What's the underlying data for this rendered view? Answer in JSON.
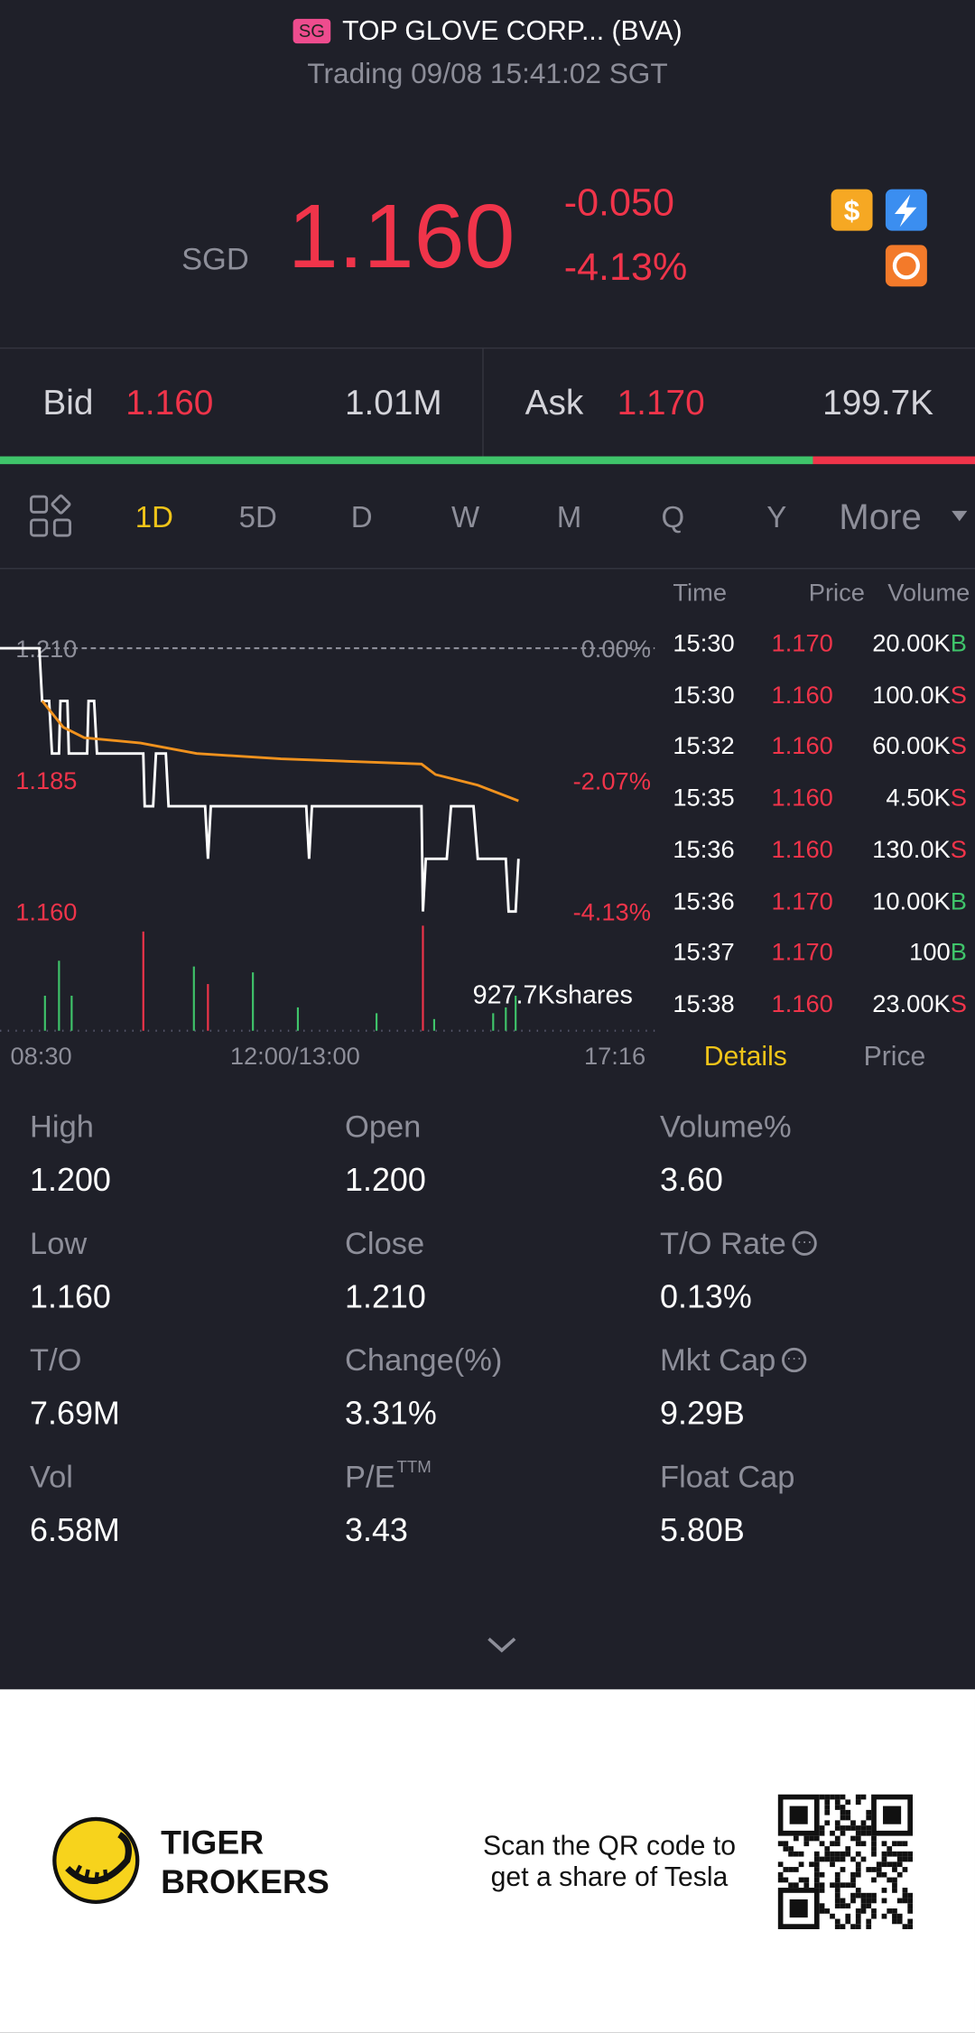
{
  "header": {
    "market_badge": "SG",
    "name": "TOP GLOVE CORP... (BVA)",
    "status": "Trading 09/08 15:41:02 SGT"
  },
  "quote": {
    "currency": "SGD",
    "price": "1.160",
    "change": "-0.050",
    "change_pct": "-4.13%"
  },
  "bid_ask": {
    "bid_label": "Bid",
    "bid_price": "1.160",
    "bid_size": "1.01M",
    "ask_label": "Ask",
    "ask_price": "1.170",
    "ask_size": "199.7K"
  },
  "tabs": [
    "1D",
    "5D",
    "D",
    "W",
    "M",
    "Q",
    "Y",
    "More"
  ],
  "chart_data": {
    "type": "line",
    "xlim": [
      0,
      466
    ],
    "xticks": [
      {
        "value": 0,
        "label": "08:30"
      },
      {
        "value": 210,
        "label": "12:00/13:00"
      },
      {
        "value": 466,
        "label": "17:16"
      }
    ],
    "ylim": [
      1.16,
      1.21
    ],
    "yticks": [
      {
        "value": 1.21,
        "label": "1.210"
      },
      {
        "value": 1.185,
        "label": "1.185"
      },
      {
        "value": 1.16,
        "label": "1.160"
      }
    ],
    "y2lim": [
      -4.13,
      0
    ],
    "y2ticks": [
      {
        "value": 0,
        "label": "0.00%"
      },
      {
        "value": -2.07,
        "label": "-2.07%"
      },
      {
        "value": -4.13,
        "label": "-4.13%"
      }
    ],
    "series": [
      {
        "color": "#ffffff",
        "x": [
          0,
          28,
          30,
          35,
          37,
          42,
          43,
          48,
          49,
          62,
          63,
          67,
          69,
          102,
          103,
          109,
          111,
          118,
          120,
          137,
          138,
          146,
          148,
          150,
          218,
          220,
          222,
          300,
          301,
          303,
          318,
          321,
          337,
          340,
          360,
          362,
          367,
          369
        ],
        "values": [
          1.21,
          1.21,
          1.2,
          1.2,
          1.19,
          1.19,
          1.2,
          1.2,
          1.19,
          1.19,
          1.2,
          1.2,
          1.19,
          1.19,
          1.18,
          1.18,
          1.19,
          1.19,
          1.18,
          1.18,
          1.18,
          1.18,
          1.17,
          1.18,
          1.18,
          1.17,
          1.18,
          1.18,
          1.16,
          1.17,
          1.17,
          1.18,
          1.18,
          1.17,
          1.17,
          1.16,
          1.16,
          1.17
        ]
      },
      {
        "color": "#f0921e",
        "x": [
          30,
          45,
          60,
          100,
          140,
          200,
          300,
          310,
          340,
          369
        ],
        "values": [
          1.2,
          1.195,
          1.193,
          1.192,
          1.19,
          1.189,
          1.188,
          1.186,
          1.184,
          1.181
        ]
      }
    ],
    "volume": {
      "label": "927.7Kshares",
      "x": [
        32,
        42,
        51,
        102,
        138,
        148,
        180,
        212,
        268,
        301,
        309,
        351,
        360,
        367
      ],
      "values": [
        30000,
        60000,
        30000,
        85000,
        55000,
        40000,
        50000,
        20000,
        15000,
        90000,
        10000,
        15000,
        20000,
        30000
      ],
      "colors": [
        "#3fc46a",
        "#3fc46a",
        "#3fc46a",
        "#f0344a",
        "#3fc46a",
        "#f0344a",
        "#3fc46a",
        "#3fc46a",
        "#3fc46a",
        "#f0344a",
        "#3fc46a",
        "#3fc46a",
        "#3fc46a",
        "#3fc46a"
      ],
      "ylim": [
        0,
        100000
      ]
    }
  },
  "trades": {
    "headers": [
      "Time",
      "Price",
      "Volume"
    ],
    "rows": [
      [
        "15:30",
        "1.170",
        "20.00K",
        "B"
      ],
      [
        "15:30",
        "1.160",
        "100.0K",
        "S"
      ],
      [
        "15:32",
        "1.160",
        "60.00K",
        "S"
      ],
      [
        "15:35",
        "1.160",
        "4.50K",
        "S"
      ],
      [
        "15:36",
        "1.160",
        "130.0K",
        "S"
      ],
      [
        "15:36",
        "1.170",
        "10.00K",
        "B"
      ],
      [
        "15:37",
        "1.170",
        "100",
        "B"
      ],
      [
        "15:38",
        "1.160",
        "23.00K",
        "S"
      ]
    ]
  },
  "trade_tabs": [
    "Details",
    "Price"
  ],
  "stats": [
    {
      "label": "High",
      "value": "1.200"
    },
    {
      "label": "Open",
      "value": "1.200"
    },
    {
      "label": "Volume%",
      "value": "3.60"
    },
    {
      "label": "Low",
      "value": "1.160"
    },
    {
      "label": "Close",
      "value": "1.210"
    },
    {
      "label": "T/O Rate",
      "value": "0.13%"
    },
    {
      "label": "T/O",
      "value": "7.69M"
    },
    {
      "label": "Change(%)",
      "value": "3.31%"
    },
    {
      "label": "Mkt Cap",
      "value": "9.29B"
    },
    {
      "label": "Vol",
      "value": "6.58M"
    },
    {
      "label": "P/E",
      "sup": "TTM",
      "value": "3.43"
    },
    {
      "label": "Float Cap",
      "value": "5.80B"
    }
  ],
  "footer": {
    "brand": [
      "TIGER",
      "BROKERS"
    ],
    "cta": [
      "Scan the QR code to",
      "get a share of Tesla"
    ]
  }
}
